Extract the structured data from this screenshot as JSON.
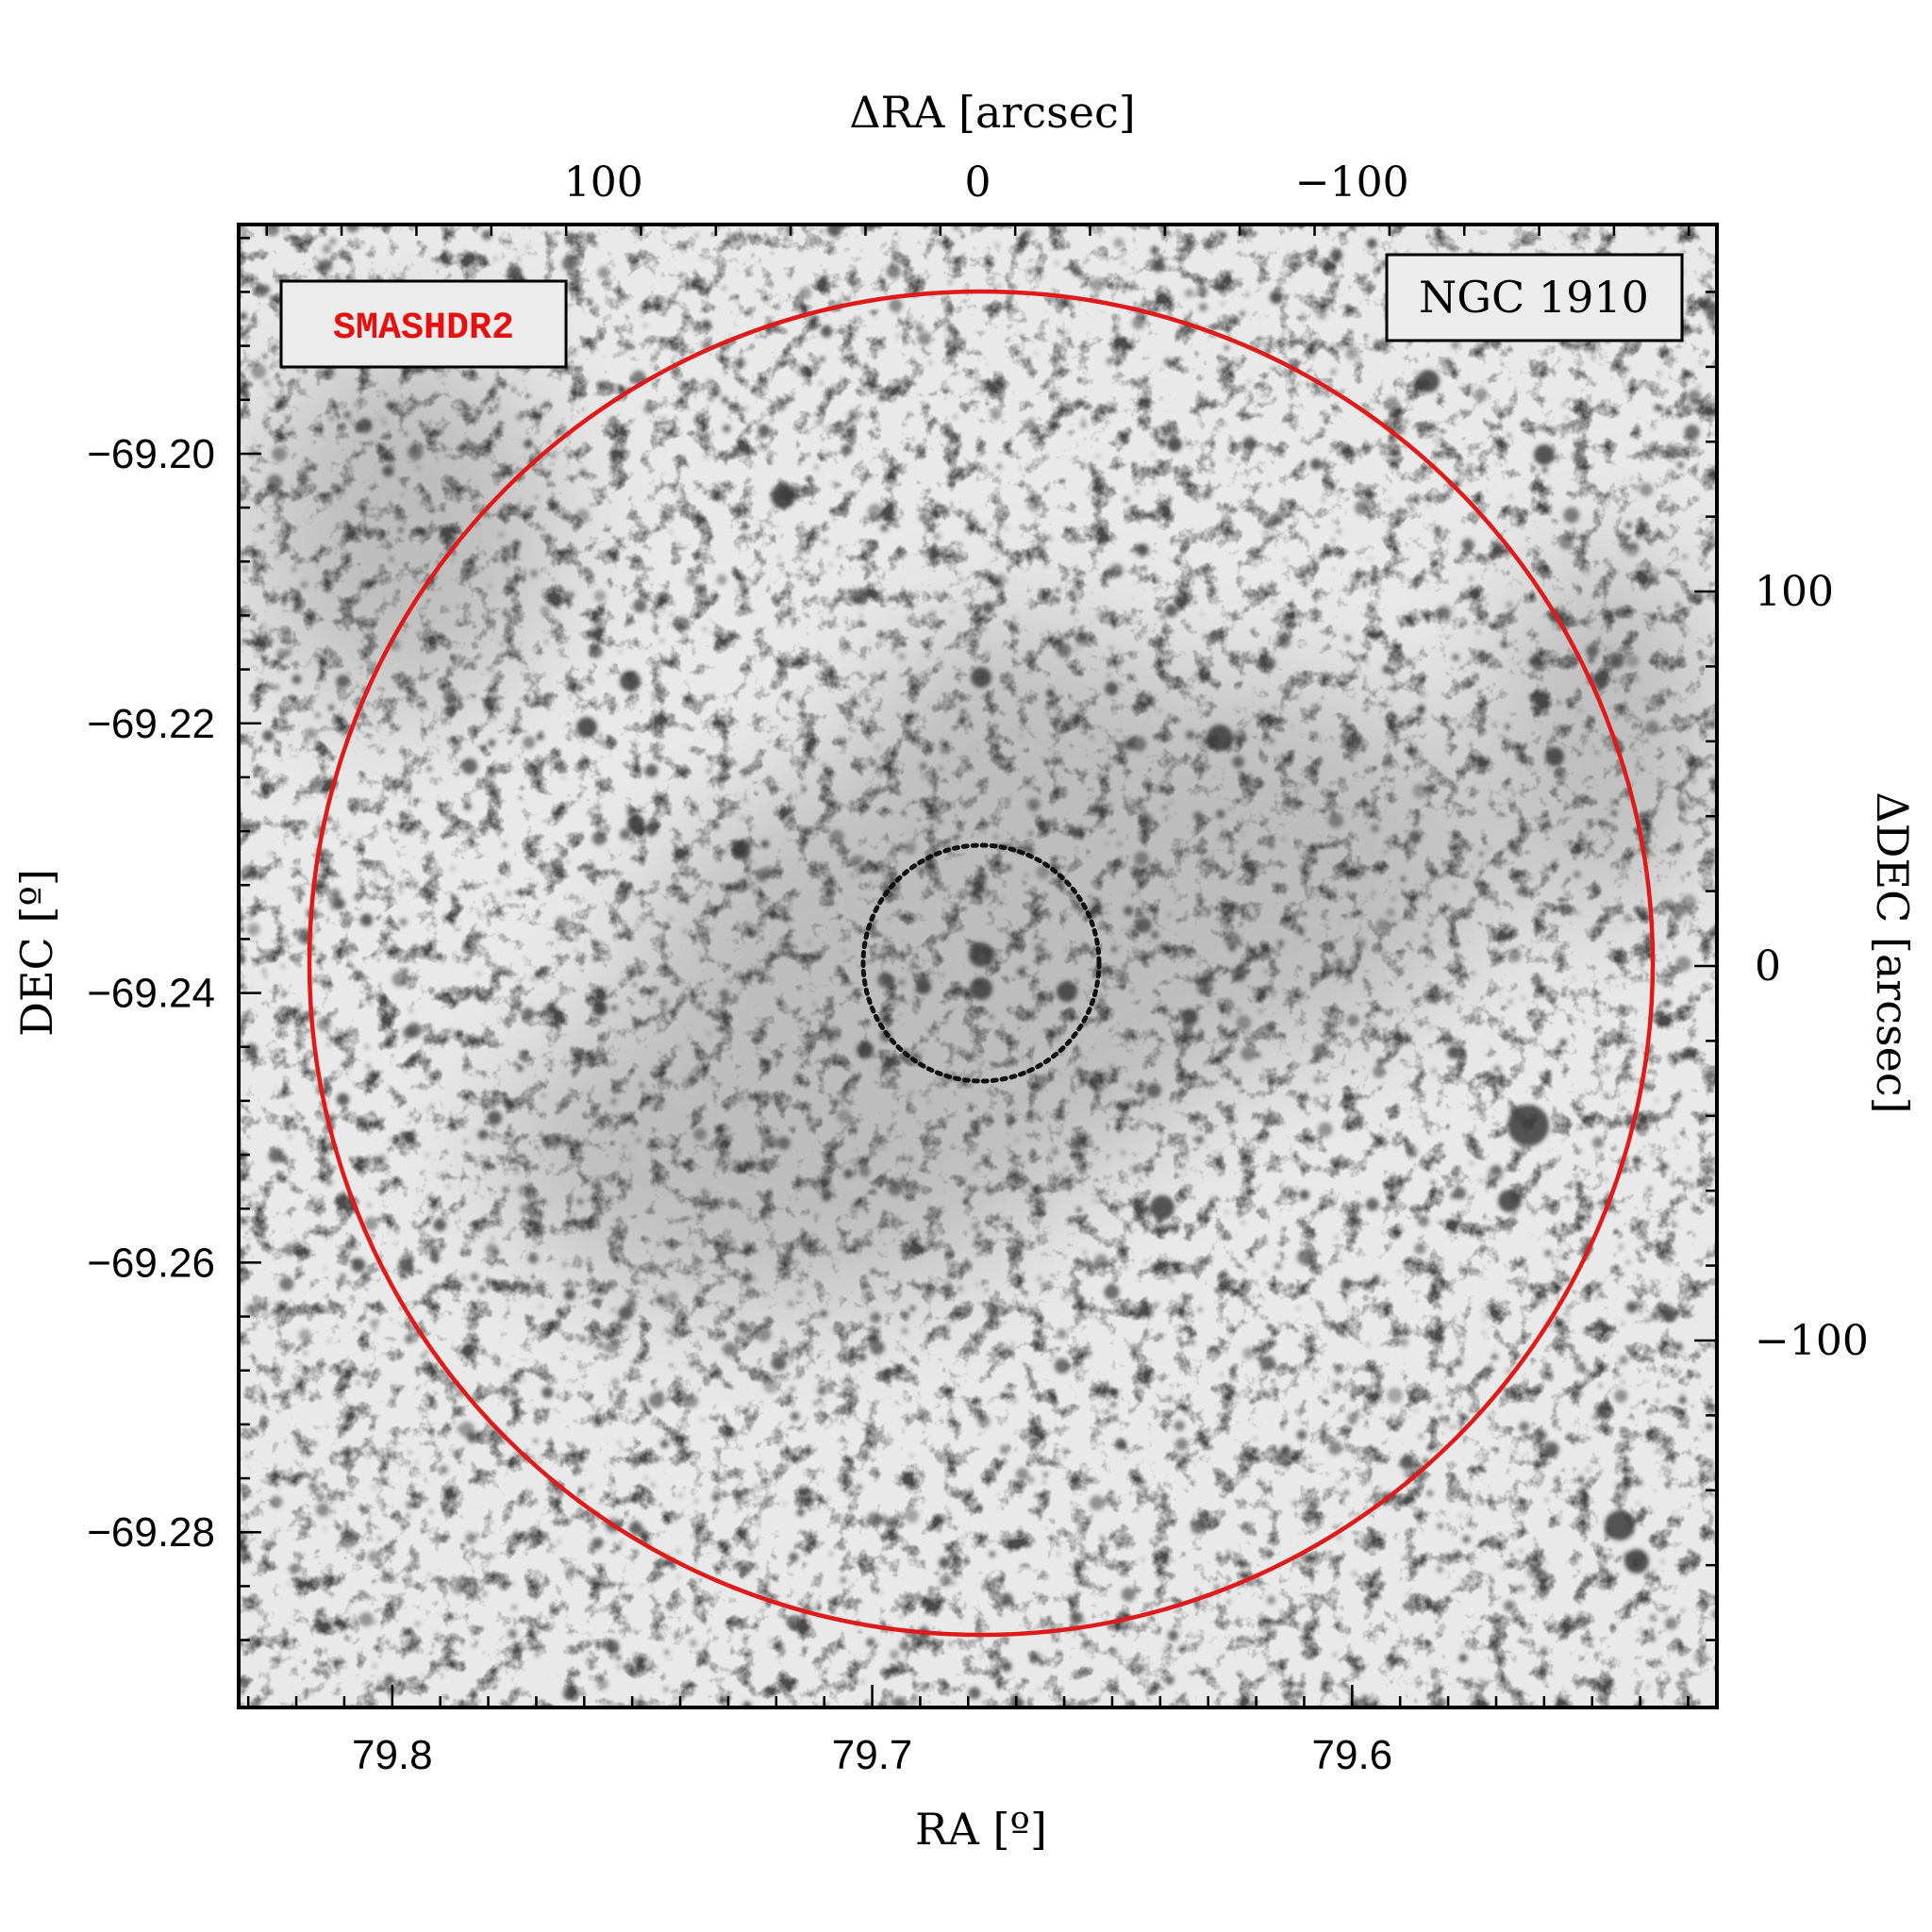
{
  "figure": {
    "object_label": "NGC 1910",
    "survey_label": "SMASHDR2",
    "survey_color": "#e8100f",
    "outer_circle_color": "#e01a1a",
    "inner_circle_color": "#111111",
    "background": "grayscale stellar field image"
  },
  "axes": {
    "bottom": {
      "label": "RA [º]",
      "range": [
        79.832,
        79.524
      ],
      "ticks": [
        {
          "v": 79.8,
          "t": "79.8"
        },
        {
          "v": 79.7,
          "t": "79.7"
        },
        {
          "v": 79.6,
          "t": "79.6"
        }
      ]
    },
    "left": {
      "label": "DEC [º]",
      "range": [
        -69.183,
        -69.293
      ],
      "ticks": [
        {
          "v": -69.2,
          "t": "−69.20"
        },
        {
          "v": -69.22,
          "t": "−69.22"
        },
        {
          "v": -69.24,
          "t": "−69.24"
        },
        {
          "v": -69.26,
          "t": "−69.26"
        },
        {
          "v": -69.28,
          "t": "−69.28"
        }
      ]
    },
    "top": {
      "label": "ΔRA [arcsec]",
      "range": [
        197.5,
        -197.5
      ],
      "ticks": [
        {
          "v": 100,
          "t": "100"
        },
        {
          "v": 0,
          "t": "0"
        },
        {
          "v": -100,
          "t": "−100"
        }
      ]
    },
    "right": {
      "label": "ΔDEC [arcsec]",
      "range": [
        198,
        -198
      ],
      "ticks": [
        {
          "v": 100,
          "t": "100"
        },
        {
          "v": 0,
          "t": "0"
        },
        {
          "v": -100,
          "t": "−100"
        }
      ]
    }
  }
}
